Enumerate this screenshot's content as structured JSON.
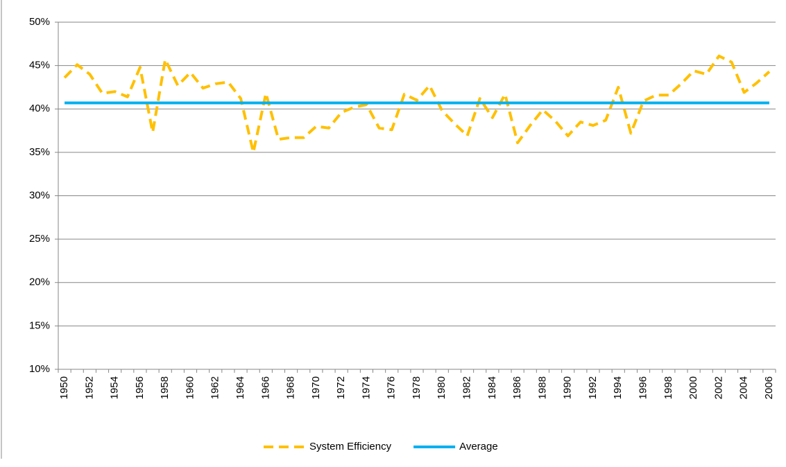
{
  "chart_data": {
    "type": "line",
    "categories": [
      "1950",
      null,
      "1952",
      null,
      "1954",
      null,
      "1956",
      null,
      "1958",
      null,
      "1960",
      null,
      "1962",
      null,
      "1964",
      null,
      "1966",
      null,
      "1968",
      null,
      "1970",
      null,
      "1972",
      null,
      "1974",
      null,
      "1976",
      null,
      "1978",
      null,
      "1980",
      null,
      "1982",
      null,
      "1984",
      null,
      "1986",
      null,
      "1988",
      null,
      "1990",
      null,
      "1992",
      null,
      "1994",
      null,
      "1996",
      null,
      "1998",
      null,
      "2000",
      null,
      "2002",
      null,
      "2004",
      null,
      "2006"
    ],
    "series": [
      {
        "name": "System Efficiency",
        "color": "#ffc000",
        "dashed": true,
        "values": [
          43.6,
          45.1,
          44.0,
          41.8,
          42.0,
          41.4,
          44.8,
          37.3,
          45.7,
          42.7,
          44.2,
          42.4,
          42.9,
          43.1,
          41.2,
          35.0,
          41.8,
          36.5,
          36.7,
          36.7,
          38.0,
          37.8,
          39.6,
          40.2,
          40.5,
          37.8,
          37.6,
          41.7,
          41.0,
          42.7,
          39.8,
          38.3,
          36.9,
          41.2,
          39.0,
          41.7,
          36.1,
          38.1,
          39.9,
          38.6,
          36.9,
          38.5,
          38.1,
          38.7,
          42.5,
          37.2,
          40.9,
          41.6,
          41.6,
          42.9,
          44.4,
          44.0,
          46.1,
          45.4,
          41.9,
          43.0,
          44.3
        ]
      },
      {
        "name": "Average",
        "color": "#00b0f0",
        "dashed": false,
        "values": [
          40.7,
          40.7,
          40.7,
          40.7,
          40.7,
          40.7,
          40.7,
          40.7,
          40.7,
          40.7,
          40.7,
          40.7,
          40.7,
          40.7,
          40.7,
          40.7,
          40.7,
          40.7,
          40.7,
          40.7,
          40.7,
          40.7,
          40.7,
          40.7,
          40.7,
          40.7,
          40.7,
          40.7,
          40.7,
          40.7,
          40.7,
          40.7,
          40.7,
          40.7,
          40.7,
          40.7,
          40.7,
          40.7,
          40.7,
          40.7,
          40.7,
          40.7,
          40.7,
          40.7,
          40.7,
          40.7,
          40.7,
          40.7,
          40.7,
          40.7,
          40.7,
          40.7,
          40.7,
          40.7,
          40.7,
          40.7,
          40.7
        ]
      }
    ],
    "ylim": [
      10,
      50
    ],
    "yticks": [
      {
        "value": 10,
        "label": "10%"
      },
      {
        "value": 15,
        "label": "15%"
      },
      {
        "value": 20,
        "label": "20%"
      },
      {
        "value": 25,
        "label": "25%"
      },
      {
        "value": 30,
        "label": "30%"
      },
      {
        "value": 35,
        "label": "35%"
      },
      {
        "value": 40,
        "label": "40%"
      },
      {
        "value": 45,
        "label": "45%"
      },
      {
        "value": 50,
        "label": "50%"
      }
    ],
    "grid": true,
    "legend": "bottom"
  }
}
